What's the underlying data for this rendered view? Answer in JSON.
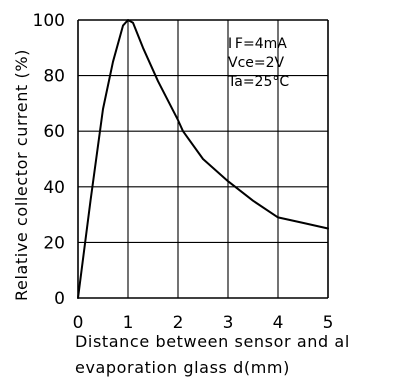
{
  "chart_data": {
    "type": "line",
    "ylabel": "Relative collector current (%)",
    "xlabel_lines": [
      "Distance between sensor and al",
      "evaporation glass d(mm)"
    ],
    "xlim": [
      0,
      5
    ],
    "ylim": [
      0,
      100
    ],
    "xticks": [
      "0",
      "1",
      "2",
      "3",
      "4",
      "5"
    ],
    "yticks": [
      "0",
      "20",
      "40",
      "60",
      "80",
      "100"
    ],
    "grid": true,
    "conditions": [
      "I F=4mA",
      "Vce=2V",
      "Ta=25°C"
    ],
    "series": [
      {
        "x": [
          0,
          0.25,
          0.5,
          0.7,
          0.9,
          1.0,
          1.1,
          1.3,
          1.6,
          2.0,
          2.1,
          2.5,
          3.0,
          3.5,
          4.0,
          4.5,
          5.0
        ],
        "y": [
          0,
          35,
          68,
          85,
          98,
          100,
          99,
          90,
          78,
          64,
          60,
          50,
          42,
          35,
          29,
          27,
          25
        ]
      }
    ]
  }
}
